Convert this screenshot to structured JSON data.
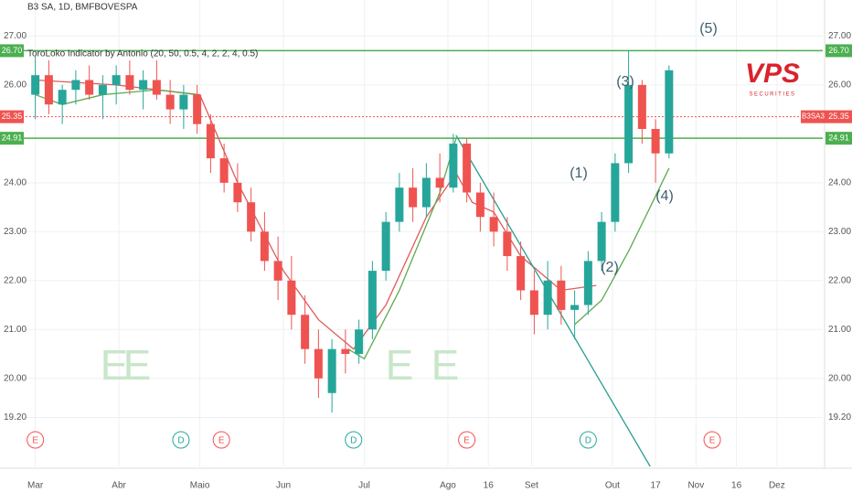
{
  "chart_data": {
    "type": "candlestick",
    "title": "B3 SA, 1D, BMFBOVESPA",
    "subtitle": "ToroLoko Indicator by Antonio (20, 50, 0.5, 4, 2, 2, 4, 0.5)",
    "up_color": "#26a69a",
    "down_color": "#ef5350",
    "x": [
      0,
      5,
      10,
      15,
      20,
      25,
      30,
      35,
      40,
      45,
      50,
      55,
      60,
      65,
      70,
      75,
      80,
      85,
      90,
      95,
      100,
      105,
      110,
      115,
      120,
      125,
      130,
      135,
      140,
      145,
      150,
      155,
      160,
      165,
      170,
      175,
      180,
      185,
      190,
      195,
      200,
      205,
      210,
      215,
      220,
      225,
      230,
      235
    ],
    "open": [
      25.8,
      26.2,
      25.6,
      25.9,
      26.1,
      25.8,
      26.0,
      26.2,
      25.9,
      26.1,
      25.8,
      25.5,
      25.8,
      25.2,
      24.5,
      24.0,
      23.6,
      23.0,
      22.4,
      22.0,
      21.3,
      20.6,
      19.7,
      20.6,
      20.5,
      21.0,
      22.2,
      23.2,
      23.9,
      23.5,
      24.1,
      23.9,
      24.8,
      23.8,
      23.3,
      23.0,
      22.5,
      21.8,
      21.3,
      22.0,
      21.4,
      21.5,
      22.4,
      23.2,
      24.4,
      26.0,
      25.1,
      24.6
    ],
    "high": [
      26.6,
      26.5,
      26.0,
      26.3,
      26.4,
      26.2,
      26.4,
      26.5,
      26.3,
      26.5,
      26.1,
      26.0,
      26.0,
      25.4,
      24.8,
      24.4,
      23.9,
      23.4,
      22.9,
      22.5,
      21.7,
      21.0,
      20.8,
      21.0,
      21.2,
      22.4,
      23.4,
      24.2,
      24.3,
      24.4,
      24.6,
      25.0,
      24.9,
      24.0,
      23.8,
      23.3,
      22.8,
      22.2,
      22.4,
      22.3,
      21.8,
      22.6,
      23.4,
      24.6,
      26.7,
      26.1,
      25.3,
      26.4
    ],
    "low": [
      25.3,
      25.4,
      25.2,
      25.6,
      25.7,
      25.3,
      25.6,
      25.8,
      25.5,
      25.7,
      25.2,
      25.1,
      25.0,
      24.2,
      23.8,
      23.4,
      22.8,
      22.2,
      21.6,
      21.0,
      20.3,
      19.6,
      19.3,
      20.1,
      20.3,
      20.8,
      22.0,
      23.0,
      23.2,
      23.3,
      23.6,
      23.8,
      23.6,
      23.0,
      22.7,
      22.2,
      21.6,
      20.9,
      21.0,
      21.1,
      20.8,
      21.3,
      22.2,
      23.0,
      24.2,
      24.8,
      24.0,
      24.5
    ],
    "close": [
      26.2,
      25.6,
      25.9,
      26.1,
      25.8,
      26.0,
      26.2,
      25.9,
      26.1,
      25.8,
      25.5,
      25.8,
      25.2,
      24.5,
      24.0,
      23.6,
      23.0,
      22.4,
      22.0,
      21.3,
      20.6,
      20.0,
      20.6,
      20.5,
      21.0,
      22.2,
      23.2,
      23.9,
      23.5,
      24.1,
      23.9,
      24.8,
      23.8,
      23.3,
      23.0,
      22.5,
      21.8,
      21.3,
      22.0,
      21.4,
      21.5,
      22.4,
      23.2,
      24.4,
      26.0,
      25.1,
      24.6,
      26.3
    ],
    "lines": [
      {
        "color": "#e05a5a",
        "x": [
          0,
          30,
          61,
          75,
          92,
          105,
          118,
          130,
          145,
          156,
          162,
          170,
          180,
          195,
          208
        ],
        "values": [
          26.1,
          26.0,
          25.8,
          24.0,
          22.2,
          21.2,
          20.6,
          21.5,
          23.3,
          24.2,
          23.6,
          23.4,
          22.5,
          21.8,
          21.9
        ]
      },
      {
        "color": "#5cab4f",
        "x": [
          0,
          10,
          25,
          45,
          60
        ],
        "values": [
          25.8,
          25.6,
          25.8,
          25.9,
          25.8
        ]
      },
      {
        "color": "#5cab4f",
        "x": [
          116,
          122,
          135,
          150,
          156
        ],
        "values": [
          20.6,
          20.4,
          21.8,
          23.8,
          24.9
        ]
      },
      {
        "color": "#2a9d8f",
        "x": [
          156,
          228
        ],
        "values": [
          24.97,
          18.2
        ]
      },
      {
        "color": "#5cab4f",
        "x": [
          200,
          210,
          220,
          228,
          235
        ],
        "values": [
          21.1,
          21.6,
          22.6,
          23.5,
          24.3
        ]
      }
    ],
    "price_lines": [
      {
        "value": 26.7,
        "label": "26.70",
        "color": "#4caf50"
      },
      {
        "value": 25.35,
        "label": "25.35",
        "color": "#ef5350"
      },
      {
        "value": 24.91,
        "label": "24.91",
        "color": "#4caf50"
      }
    ],
    "symbol_tag": "B3SA3",
    "xlim": [
      -7,
      292
    ],
    "xticks": [
      {
        "value": 0,
        "label": "Mar"
      },
      {
        "value": 31,
        "label": "Abr"
      },
      {
        "value": 61,
        "label": "Maio"
      },
      {
        "value": 92,
        "label": "Jun"
      },
      {
        "value": 122,
        "label": "Jul"
      },
      {
        "value": 153,
        "label": "Ago"
      },
      {
        "value": 168,
        "label": "16"
      },
      {
        "value": 184,
        "label": "Set"
      },
      {
        "value": 214,
        "label": "Out"
      },
      {
        "value": 230,
        "label": "17"
      },
      {
        "value": 245,
        "label": "Nov"
      },
      {
        "value": 260,
        "label": "16"
      },
      {
        "value": 275,
        "label": "Dez"
      }
    ],
    "ylim": [
      18.2,
      27.4
    ],
    "yticks": [
      {
        "value": 27,
        "label": "27.00"
      },
      {
        "value": 26,
        "label": "26.00"
      },
      {
        "value": 24,
        "label": "24.00"
      },
      {
        "value": 23,
        "label": "23.00"
      },
      {
        "value": 22,
        "label": "22.00"
      },
      {
        "value": 21,
        "label": "21.00"
      },
      {
        "value": 20,
        "label": "20.00"
      },
      {
        "value": 19.2,
        "label": "19.20"
      }
    ],
    "grid": true,
    "events": [
      {
        "label": "E",
        "x": 0,
        "color": "#ef5350"
      },
      {
        "label": "D",
        "x": 54,
        "color": "#26a69a"
      },
      {
        "label": "E",
        "x": 69,
        "color": "#ef5350"
      },
      {
        "label": "D",
        "x": 118,
        "color": "#26a69a"
      },
      {
        "label": "E",
        "x": 160,
        "color": "#ef5350"
      },
      {
        "label": "D",
        "x": 205,
        "color": "#26a69a"
      },
      {
        "label": "E",
        "x": 251,
        "color": "#ef5350"
      }
    ],
    "waves": [
      "(1)",
      "(2)",
      "(3)",
      "(4)",
      "(5)"
    ],
    "watermarks": [
      "E",
      "E",
      "E",
      "E"
    ],
    "logo": {
      "text": "VPS",
      "subtext": "SECURITIES"
    }
  }
}
